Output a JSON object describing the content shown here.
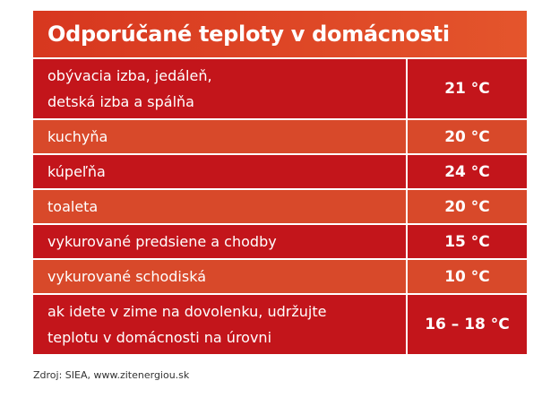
{
  "header": {
    "title": "Odporúčané teploty v domácnosti"
  },
  "table": {
    "rows": [
      {
        "label": [
          "obývacia izba, jedáleň,",
          "detská izba a spálňa"
        ],
        "value": "21 °C"
      },
      {
        "label": [
          "kuchyňa"
        ],
        "value": "20 °C"
      },
      {
        "label": [
          "kúpeľňa"
        ],
        "value": "24 °C"
      },
      {
        "label": [
          "toaleta"
        ],
        "value": "20 °C"
      },
      {
        "label": [
          "vykurované predsiene a chodby"
        ],
        "value": "15 °C"
      },
      {
        "label": [
          "vykurované schodiská"
        ],
        "value": "10 °C"
      },
      {
        "label": [
          "ak idete v zime na dovolenku, udržujte",
          "teplotu v domácnosti na úrovni"
        ],
        "value": "16 – 18 °C"
      }
    ]
  },
  "footer": {
    "source": "Zdroj: SIEA, www.zitenergiou.sk"
  }
}
